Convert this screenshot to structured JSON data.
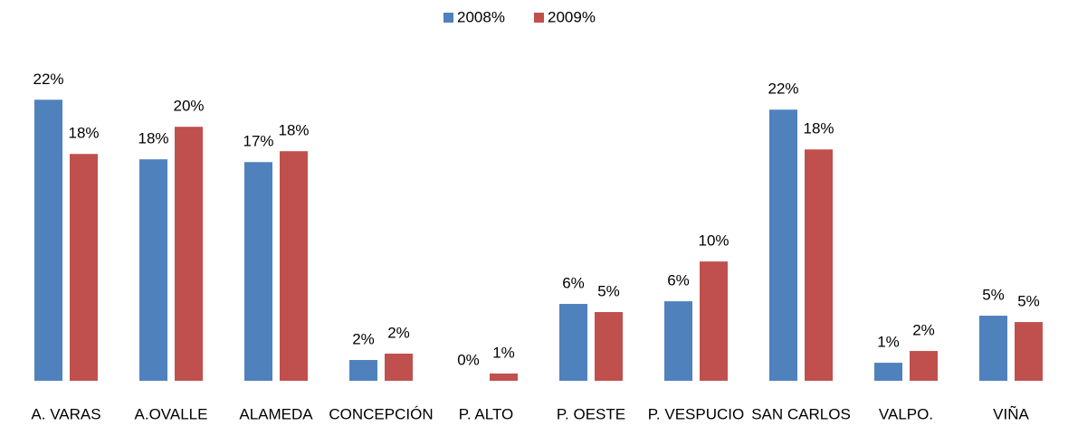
{
  "chart_data": {
    "type": "bar",
    "categories": [
      "A. VARAS",
      "A.OVALLE",
      "ALAMEDA",
      "CONCEPCIÓN",
      "P. ALTO",
      "P. OESTE",
      "P. VESPUCIO",
      "SAN CARLOS",
      "VALPO.",
      "VIÑA"
    ],
    "series": [
      {
        "name": "2008%",
        "color": "#4f81bd",
        "values": [
          22.45,
          17.69,
          17.47,
          1.66,
          0,
          6.14,
          6.35,
          21.66,
          1.44,
          5.2
        ],
        "value_labels": [
          "22%",
          "18%",
          "17%",
          "2%",
          "0%",
          "6%",
          "6%",
          "22%",
          "1%",
          "5%"
        ]
      },
      {
        "name": "2009%",
        "color": "#c0504d",
        "values": [
          18.12,
          20.29,
          18.34,
          2.17,
          0.58,
          5.49,
          9.53,
          18.48,
          2.38,
          4.69
        ],
        "value_labels": [
          "18%",
          "20%",
          "18%",
          "2%",
          "1%",
          "5%",
          "10%",
          "18%",
          "2%",
          "5%"
        ]
      }
    ],
    "ylim": [
      0,
      25
    ],
    "grid": false,
    "legend": "top"
  }
}
